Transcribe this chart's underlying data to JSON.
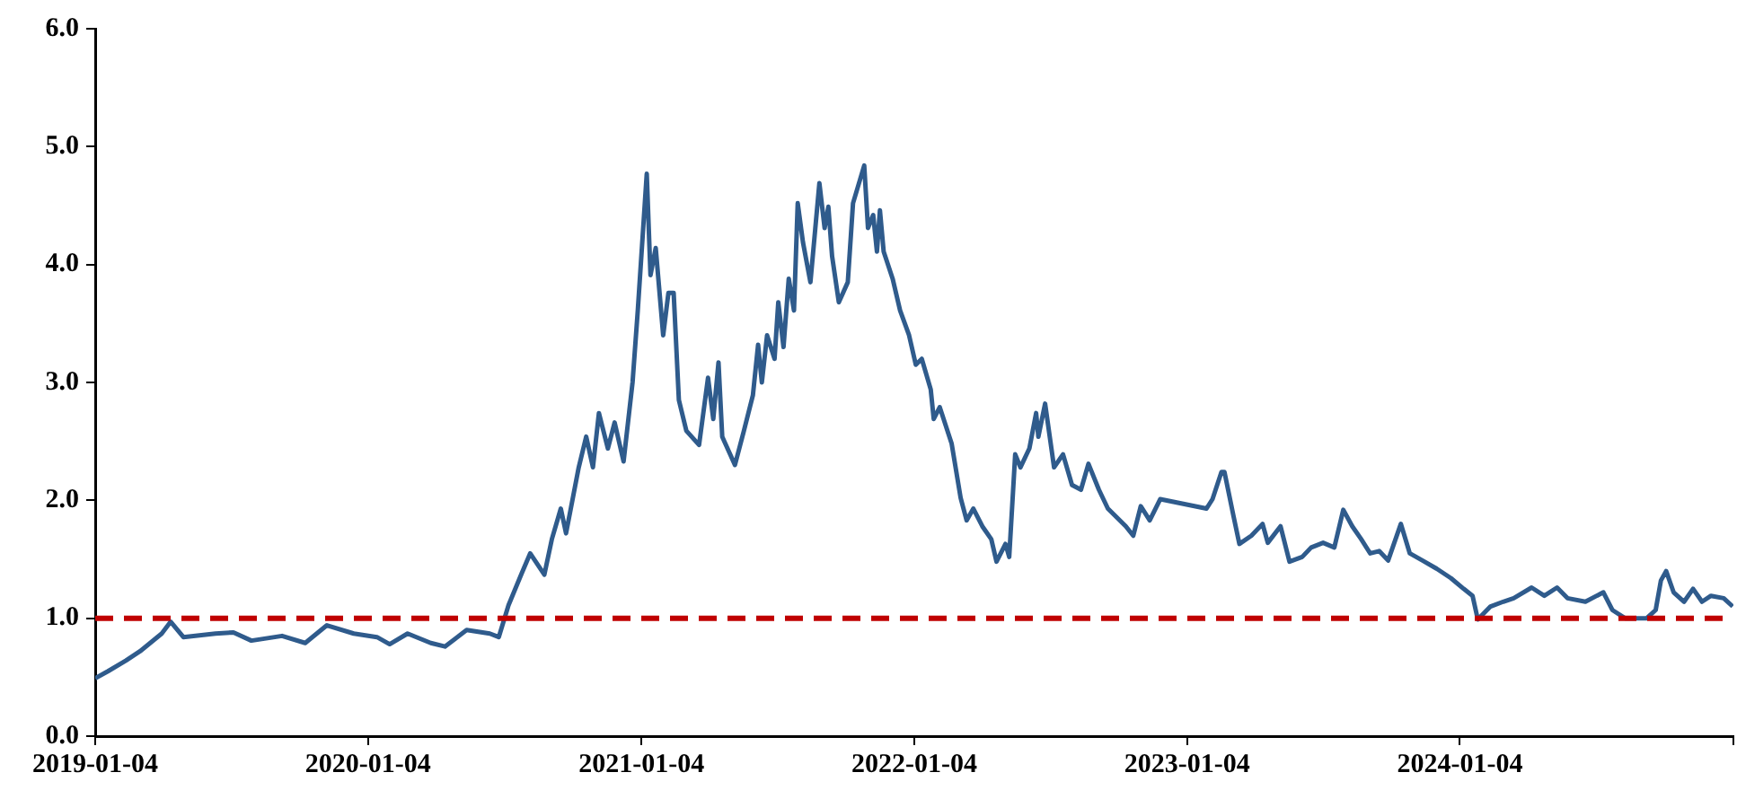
{
  "chart_data": {
    "type": "line",
    "x": [
      "2019-01-04",
      "2019-01-21",
      "2019-02-14",
      "2019-03-05",
      "2019-04-03",
      "2019-04-15",
      "2019-05-02",
      "2019-06-14",
      "2019-07-08",
      "2019-08-01",
      "2019-09-11",
      "2019-10-12",
      "2019-11-10",
      "2019-12-16",
      "2020-01-16",
      "2020-02-02",
      "2020-02-26",
      "2020-03-28",
      "2020-04-16",
      "2020-05-15",
      "2020-06-15",
      "2020-06-27",
      "2020-07-10",
      "2020-07-27",
      "2020-08-08",
      "2020-08-27",
      "2020-09-06",
      "2020-09-18",
      "2020-09-25",
      "2020-10-12",
      "2020-10-22",
      "2020-10-31",
      "2020-11-08",
      "2020-11-20",
      "2020-11-29",
      "2020-12-11",
      "2020-12-23",
      "2020-12-30",
      "2021-01-11",
      "2021-01-16",
      "2021-01-23",
      "2021-02-02",
      "2021-02-09",
      "2021-02-16",
      "2021-02-23",
      "2021-03-05",
      "2021-03-22",
      "2021-04-03",
      "2021-04-10",
      "2021-04-17",
      "2021-04-22",
      "2021-05-09",
      "2021-05-21",
      "2021-06-02",
      "2021-06-09",
      "2021-06-14",
      "2021-06-21",
      "2021-07-01",
      "2021-07-06",
      "2021-07-13",
      "2021-07-20",
      "2021-07-27",
      "2021-08-01",
      "2021-08-08",
      "2021-08-18",
      "2021-08-30",
      "2021-09-06",
      "2021-09-11",
      "2021-09-16",
      "2021-09-25",
      "2021-10-07",
      "2021-10-14",
      "2021-10-29",
      "2021-11-03",
      "2021-11-10",
      "2021-11-15",
      "2021-11-19",
      "2021-11-24",
      "2021-12-06",
      "2021-12-16",
      "2021-12-28",
      "2022-01-06",
      "2022-01-14",
      "2022-01-26",
      "2022-01-30",
      "2022-02-07",
      "2022-02-23",
      "2022-03-07",
      "2022-03-15",
      "2022-03-24",
      "2022-04-05",
      "2022-04-17",
      "2022-04-24",
      "2022-05-06",
      "2022-05-11",
      "2022-05-19",
      "2022-05-26",
      "2022-06-07",
      "2022-06-16",
      "2022-06-19",
      "2022-06-28",
      "2022-07-10",
      "2022-07-22",
      "2022-08-03",
      "2022-08-15",
      "2022-08-25",
      "2022-09-08",
      "2022-09-20",
      "2022-10-14",
      "2022-10-24",
      "2022-11-03",
      "2022-11-15",
      "2022-11-29",
      "2023-01-30",
      "2023-02-07",
      "2023-02-19",
      "2023-02-23",
      "2023-03-07",
      "2023-03-15",
      "2023-03-31",
      "2023-04-15",
      "2023-04-22",
      "2023-05-09",
      "2023-05-21",
      "2023-06-07",
      "2023-06-19",
      "2023-07-05",
      "2023-07-20",
      "2023-08-01",
      "2023-08-13",
      "2023-08-25",
      "2023-09-06",
      "2023-09-18",
      "2023-09-30",
      "2023-10-17",
      "2023-10-29",
      "2023-11-15",
      "2023-12-04",
      "2023-12-23",
      "2024-01-09",
      "2024-01-21",
      "2024-01-28",
      "2024-02-14",
      "2024-03-02",
      "2024-03-16",
      "2024-04-09",
      "2024-04-26",
      "2024-05-13",
      "2024-05-27",
      "2024-06-20",
      "2024-07-14",
      "2024-07-26",
      "2024-08-12",
      "2024-09-10",
      "2024-09-22",
      "2024-09-29",
      "2024-10-06",
      "2024-10-16",
      "2024-10-30",
      "2024-11-11",
      "2024-11-23",
      "2024-12-05",
      "2024-12-22",
      "2025-01-03"
    ],
    "series": [
      {
        "color": "#2f5b8c",
        "values": [
          0.49,
          0.55,
          0.64,
          0.72,
          0.87,
          0.97,
          0.84,
          0.87,
          0.88,
          0.81,
          0.85,
          0.79,
          0.94,
          0.87,
          0.84,
          0.78,
          0.87,
          0.79,
          0.76,
          0.9,
          0.87,
          0.84,
          1.11,
          1.37,
          1.55,
          1.37,
          1.67,
          1.93,
          1.72,
          2.28,
          2.54,
          2.28,
          2.74,
          2.44,
          2.66,
          2.33,
          3.0,
          3.61,
          4.77,
          3.91,
          4.14,
          3.4,
          3.76,
          3.76,
          2.85,
          2.59,
          2.47,
          3.04,
          2.69,
          3.17,
          2.54,
          2.3,
          2.59,
          2.89,
          3.32,
          3.0,
          3.4,
          3.2,
          3.68,
          3.3,
          3.88,
          3.61,
          4.52,
          4.19,
          3.85,
          4.69,
          4.31,
          4.49,
          4.07,
          3.68,
          3.85,
          4.52,
          4.84,
          4.31,
          4.42,
          4.11,
          4.46,
          4.11,
          3.88,
          3.61,
          3.4,
          3.15,
          3.2,
          2.94,
          2.69,
          2.79,
          2.48,
          2.02,
          1.83,
          1.93,
          1.78,
          1.67,
          1.48,
          1.63,
          1.52,
          2.39,
          2.28,
          2.44,
          2.74,
          2.54,
          2.82,
          2.28,
          2.39,
          2.13,
          2.09,
          2.31,
          2.09,
          1.93,
          1.78,
          1.7,
          1.95,
          1.83,
          2.01,
          1.93,
          2.01,
          2.24,
          2.24,
          1.87,
          1.63,
          1.7,
          1.8,
          1.64,
          1.78,
          1.48,
          1.52,
          1.6,
          1.64,
          1.6,
          1.92,
          1.78,
          1.67,
          1.55,
          1.57,
          1.49,
          1.8,
          1.55,
          1.49,
          1.42,
          1.34,
          1.25,
          1.19,
          0.99,
          1.1,
          1.14,
          1.17,
          1.26,
          1.19,
          1.26,
          1.17,
          1.14,
          1.22,
          1.07,
          1.0,
          1.0,
          1.07,
          1.32,
          1.4,
          1.22,
          1.14,
          1.25,
          1.14,
          1.19,
          1.17,
          1.1
        ]
      }
    ],
    "xlim": [
      "2019-01-04",
      "2025-01-04"
    ],
    "xticks": [
      "2019-01-04",
      "2020-01-04",
      "2021-01-04",
      "2022-01-04",
      "2023-01-04",
      "2024-01-04",
      {
        "value": "2025-01-04",
        "label": null
      }
    ],
    "ylim": [
      0,
      6
    ],
    "yticks": [
      {
        "value": 0,
        "label": "0.0"
      },
      {
        "value": 1,
        "label": "1.0"
      },
      {
        "value": 2,
        "label": "2.0"
      },
      {
        "value": 3,
        "label": "3.0"
      },
      {
        "value": 4,
        "label": "4.0"
      },
      {
        "value": 5,
        "label": "5.0"
      },
      {
        "value": 6,
        "label": "6.0"
      }
    ],
    "ref_lines": [
      {
        "axis": "y",
        "value": 1,
        "color": "#c00000",
        "line_style": "dashed"
      }
    ],
    "grid": false,
    "legend": false,
    "marker": "none",
    "line_style": "solid"
  }
}
